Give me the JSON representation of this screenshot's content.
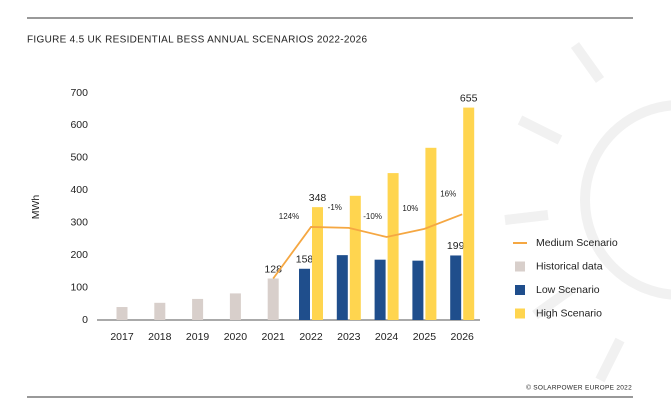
{
  "chart_data": {
    "type": "bar",
    "title": "FIGURE 4.5 UK RESIDENTIAL BESS ANNUAL SCENARIOS 2022-2026",
    "y_label": "MWh",
    "source": "© SOLARPOWER EUROPE 2022",
    "categories": [
      "2017",
      "2018",
      "2019",
      "2020",
      "2021",
      "2022",
      "2023",
      "2024",
      "2025",
      "2026"
    ],
    "ylim": [
      0,
      700
    ],
    "yticks": [
      0,
      100,
      200,
      300,
      400,
      500,
      600,
      700
    ],
    "series": [
      {
        "name": "Medium Scenario",
        "kind": "line",
        "color": "#f5a742",
        "values": [
          null,
          null,
          null,
          null,
          128,
          287,
          284,
          256,
          281,
          326
        ]
      },
      {
        "name": "Historical data",
        "kind": "bar",
        "slot": "center",
        "color": "#d8cfcb",
        "values": [
          40,
          53,
          65,
          82,
          128,
          null,
          null,
          null,
          null,
          null
        ],
        "value_labels": [
          null,
          null,
          null,
          null,
          "128",
          null,
          null,
          null,
          null,
          null
        ]
      },
      {
        "name": "Low Scenario",
        "kind": "bar",
        "slot": "left",
        "color": "#1f4e8c",
        "values": [
          null,
          null,
          null,
          null,
          null,
          158,
          200,
          186,
          183,
          199
        ],
        "value_labels": [
          null,
          null,
          null,
          null,
          null,
          "158",
          null,
          null,
          null,
          "199"
        ]
      },
      {
        "name": "High Scenario",
        "kind": "bar",
        "slot": "right",
        "color": "#ffd54f",
        "values": [
          null,
          null,
          null,
          null,
          null,
          348,
          383,
          453,
          531,
          655
        ],
        "value_labels": [
          null,
          null,
          null,
          null,
          null,
          "348",
          null,
          null,
          null,
          "655"
        ]
      }
    ],
    "annotations": [
      {
        "text": "124%",
        "category": "2022"
      },
      {
        "text": "-1%",
        "category": "2023"
      },
      {
        "text": "-10%",
        "category": "2024"
      },
      {
        "text": "10%",
        "category": "2025"
      },
      {
        "text": "16%",
        "category": "2026"
      }
    ]
  }
}
